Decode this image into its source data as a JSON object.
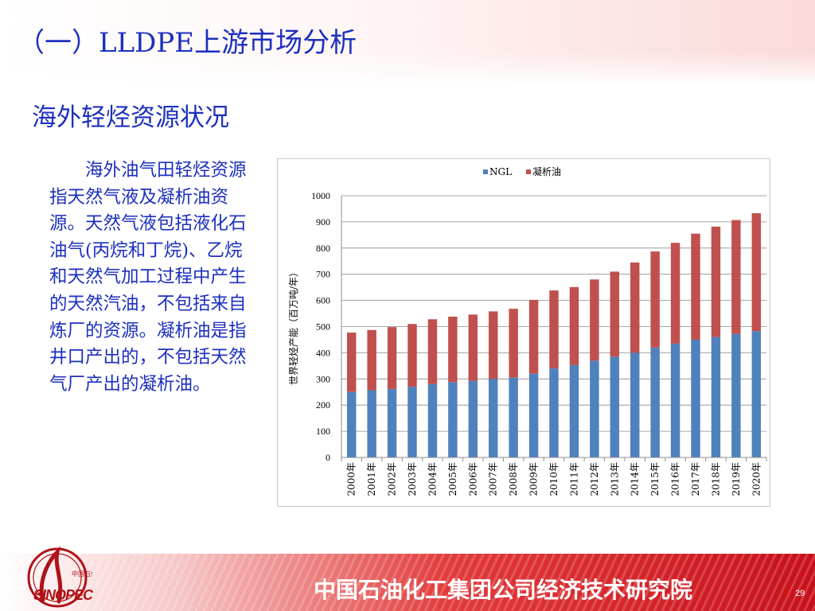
{
  "slide": {
    "title": "（一）LLDPE上游市场分析",
    "section_title": "海外轻烃资源状况",
    "body": "海外油气田轻烃资源指天然气液及凝析油资源。天然气液包括液化石油气(丙烷和丁烷)、乙烷和天然气加工过程中产生的天然汽油，不包括来自炼厂的资源。凝析油是指井口产出的，不包括天然气厂产出的凝析油。"
  },
  "footer": {
    "organization": "中国石油化工集团公司经济技术研究院",
    "page_number": "29",
    "logo_text": "SINOPEC",
    "logo_chinese": "中国石化"
  },
  "colors": {
    "title_blue": "#1c2fbf",
    "ngl": "#4f81bd",
    "condensate": "#c0504d",
    "footer_red": "#c8101a"
  },
  "chart_data": {
    "type": "bar",
    "stacked": true,
    "categories": [
      "2000年",
      "2001年",
      "2002年",
      "2003年",
      "2004年",
      "2005年",
      "2006年",
      "2007年",
      "2008年",
      "2009年",
      "2010年",
      "2011年",
      "2012年",
      "2013年",
      "2014年",
      "2015年",
      "2016年",
      "2017年",
      "2018年",
      "2019年",
      "2020年"
    ],
    "series": [
      {
        "name": "NGL",
        "values": [
          250,
          257,
          262,
          270,
          280,
          288,
          293,
          300,
          305,
          320,
          340,
          353,
          370,
          385,
          400,
          420,
          435,
          450,
          460,
          472,
          483
        ]
      },
      {
        "name": "凝析油",
        "values": [
          227,
          230,
          236,
          240,
          248,
          250,
          253,
          258,
          263,
          282,
          298,
          298,
          310,
          325,
          345,
          367,
          385,
          405,
          422,
          435,
          450
        ]
      }
    ],
    "ylabel": "世界轻烃产能（百万吨/年）",
    "ylim": [
      0,
      1000
    ],
    "yticks": [
      0,
      100,
      200,
      300,
      400,
      500,
      600,
      700,
      800,
      900,
      1000
    ],
    "grid": true,
    "legend_position": "top"
  }
}
